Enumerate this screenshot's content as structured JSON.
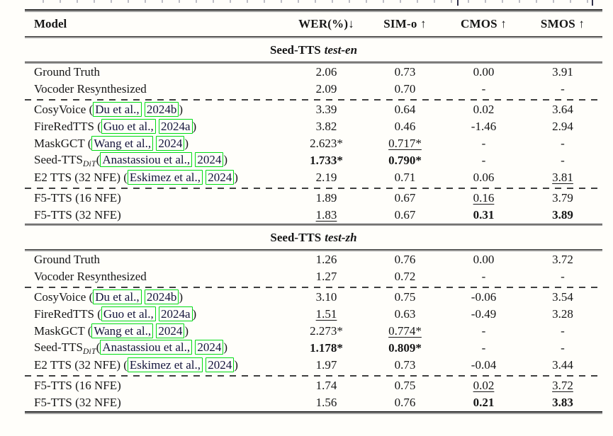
{
  "colors": {
    "citation_box": "#00dc12",
    "rule": "#2c2c2c",
    "text": "#161616",
    "background": "#fffefa"
  },
  "table": {
    "columns": [
      "Model",
      "WER(%)↓",
      "SIM-o ↑",
      "CMOS ↑",
      "SMOS ↑"
    ],
    "sections": [
      {
        "title": {
          "name": "Seed-TTS",
          "variant": "test-en"
        },
        "groups": [
          {
            "rows": [
              {
                "model": [
                  {
                    "t": "Ground Truth"
                  }
                ],
                "values": [
                  {
                    "t": "2.06"
                  },
                  {
                    "t": "0.73"
                  },
                  {
                    "t": "0.00"
                  },
                  {
                    "t": "3.91"
                  }
                ]
              },
              {
                "model": [
                  {
                    "t": "Vocoder Resynthesized"
                  }
                ],
                "values": [
                  {
                    "t": "2.09"
                  },
                  {
                    "t": "0.70"
                  },
                  {
                    "t": "-"
                  },
                  {
                    "t": "-"
                  }
                ]
              }
            ]
          },
          {
            "rows": [
              {
                "model": [
                  {
                    "t": "CosyVoice ("
                  },
                  {
                    "t": "Du et al.,",
                    "box": true
                  },
                  {
                    "t": " "
                  },
                  {
                    "t": "2024b",
                    "box": true
                  },
                  {
                    "t": ")"
                  }
                ],
                "values": [
                  {
                    "t": "3.39"
                  },
                  {
                    "t": "0.64"
                  },
                  {
                    "t": "0.02"
                  },
                  {
                    "t": "3.64"
                  }
                ]
              },
              {
                "model": [
                  {
                    "t": "FireRedTTS ("
                  },
                  {
                    "t": "Guo et al.,",
                    "box": true
                  },
                  {
                    "t": " "
                  },
                  {
                    "t": "2024a",
                    "box": true
                  },
                  {
                    "t": ")"
                  }
                ],
                "values": [
                  {
                    "t": "3.82"
                  },
                  {
                    "t": "0.46"
                  },
                  {
                    "t": "-1.46"
                  },
                  {
                    "t": "2.94"
                  }
                ]
              },
              {
                "model": [
                  {
                    "t": "MaskGCT ("
                  },
                  {
                    "t": "Wang et al.,",
                    "box": true
                  },
                  {
                    "t": " "
                  },
                  {
                    "t": "2024",
                    "box": true
                  },
                  {
                    "t": ")"
                  }
                ],
                "values": [
                  {
                    "t": "2.623*"
                  },
                  {
                    "t": "0.717*",
                    "s": "u"
                  },
                  {
                    "t": "-"
                  },
                  {
                    "t": "-"
                  }
                ]
              },
              {
                "model": [
                  {
                    "t": "Seed-TTS"
                  },
                  {
                    "t": "DiT",
                    "sub": true
                  },
                  {
                    "t": "("
                  },
                  {
                    "t": "Anastassiou et al.,",
                    "box": true
                  },
                  {
                    "t": " "
                  },
                  {
                    "t": "2024",
                    "box": true
                  },
                  {
                    "t": ")"
                  }
                ],
                "values": [
                  {
                    "t": "1.733*",
                    "s": "b"
                  },
                  {
                    "t": "0.790*",
                    "s": "b"
                  },
                  {
                    "t": "-"
                  },
                  {
                    "t": "-"
                  }
                ]
              },
              {
                "model": [
                  {
                    "t": "E2 TTS (32 NFE) ("
                  },
                  {
                    "t": "Eskimez et al.,",
                    "box": true
                  },
                  {
                    "t": " "
                  },
                  {
                    "t": "2024",
                    "box": true
                  },
                  {
                    "t": ")"
                  }
                ],
                "values": [
                  {
                    "t": "2.19"
                  },
                  {
                    "t": "0.71"
                  },
                  {
                    "t": "0.06"
                  },
                  {
                    "t": "3.81",
                    "s": "u"
                  }
                ]
              }
            ]
          },
          {
            "rows": [
              {
                "model": [
                  {
                    "t": "F5-TTS (16 NFE)"
                  }
                ],
                "values": [
                  {
                    "t": "1.89"
                  },
                  {
                    "t": "0.67"
                  },
                  {
                    "t": "0.16",
                    "s": "u"
                  },
                  {
                    "t": "3.79"
                  }
                ]
              },
              {
                "model": [
                  {
                    "t": "F5-TTS (32 NFE)"
                  }
                ],
                "values": [
                  {
                    "t": "1.83",
                    "s": "u"
                  },
                  {
                    "t": "0.67"
                  },
                  {
                    "t": "0.31",
                    "s": "b"
                  },
                  {
                    "t": "3.89",
                    "s": "b"
                  }
                ]
              }
            ]
          }
        ]
      },
      {
        "title": {
          "name": "Seed-TTS",
          "variant": "test-zh"
        },
        "groups": [
          {
            "rows": [
              {
                "model": [
                  {
                    "t": "Ground Truth"
                  }
                ],
                "values": [
                  {
                    "t": "1.26"
                  },
                  {
                    "t": "0.76"
                  },
                  {
                    "t": "0.00"
                  },
                  {
                    "t": "3.72"
                  }
                ]
              },
              {
                "model": [
                  {
                    "t": "Vocoder Resynthesized"
                  }
                ],
                "values": [
                  {
                    "t": "1.27"
                  },
                  {
                    "t": "0.72"
                  },
                  {
                    "t": "-"
                  },
                  {
                    "t": "-"
                  }
                ]
              }
            ]
          },
          {
            "rows": [
              {
                "model": [
                  {
                    "t": "CosyVoice ("
                  },
                  {
                    "t": "Du et al.,",
                    "box": true
                  },
                  {
                    "t": " "
                  },
                  {
                    "t": "2024b",
                    "box": true
                  },
                  {
                    "t": ")"
                  }
                ],
                "values": [
                  {
                    "t": "3.10"
                  },
                  {
                    "t": "0.75"
                  },
                  {
                    "t": "-0.06"
                  },
                  {
                    "t": "3.54"
                  }
                ]
              },
              {
                "model": [
                  {
                    "t": "FireRedTTS ("
                  },
                  {
                    "t": "Guo et al.,",
                    "box": true
                  },
                  {
                    "t": " "
                  },
                  {
                    "t": "2024a",
                    "box": true
                  },
                  {
                    "t": ")"
                  }
                ],
                "values": [
                  {
                    "t": "1.51",
                    "s": "u"
                  },
                  {
                    "t": "0.63"
                  },
                  {
                    "t": "-0.49"
                  },
                  {
                    "t": "3.28"
                  }
                ]
              },
              {
                "model": [
                  {
                    "t": "MaskGCT ("
                  },
                  {
                    "t": "Wang et al.,",
                    "box": true
                  },
                  {
                    "t": " "
                  },
                  {
                    "t": "2024",
                    "box": true
                  },
                  {
                    "t": ")"
                  }
                ],
                "values": [
                  {
                    "t": "2.273*"
                  },
                  {
                    "t": "0.774*",
                    "s": "u"
                  },
                  {
                    "t": "-"
                  },
                  {
                    "t": "-"
                  }
                ]
              },
              {
                "model": [
                  {
                    "t": "Seed-TTS"
                  },
                  {
                    "t": "DiT",
                    "sub": true
                  },
                  {
                    "t": "("
                  },
                  {
                    "t": "Anastassiou et al.,",
                    "box": true
                  },
                  {
                    "t": " "
                  },
                  {
                    "t": "2024",
                    "box": true
                  },
                  {
                    "t": ")"
                  }
                ],
                "values": [
                  {
                    "t": "1.178*",
                    "s": "b"
                  },
                  {
                    "t": "0.809*",
                    "s": "b"
                  },
                  {
                    "t": "-"
                  },
                  {
                    "t": "-"
                  }
                ]
              },
              {
                "model": [
                  {
                    "t": "E2 TTS (32 NFE) ("
                  },
                  {
                    "t": "Eskimez et al.,",
                    "box": true
                  },
                  {
                    "t": " "
                  },
                  {
                    "t": "2024",
                    "box": true
                  },
                  {
                    "t": ")"
                  }
                ],
                "values": [
                  {
                    "t": "1.97"
                  },
                  {
                    "t": "0.73"
                  },
                  {
                    "t": "-0.04"
                  },
                  {
                    "t": "3.44"
                  }
                ]
              }
            ]
          },
          {
            "rows": [
              {
                "model": [
                  {
                    "t": "F5-TTS (16 NFE)"
                  }
                ],
                "values": [
                  {
                    "t": "1.74"
                  },
                  {
                    "t": "0.75"
                  },
                  {
                    "t": "0.02",
                    "s": "u"
                  },
                  {
                    "t": "3.72",
                    "s": "u"
                  }
                ]
              },
              {
                "model": [
                  {
                    "t": "F5-TTS (32 NFE)"
                  }
                ],
                "values": [
                  {
                    "t": "1.56"
                  },
                  {
                    "t": "0.76"
                  },
                  {
                    "t": "0.21",
                    "s": "b"
                  },
                  {
                    "t": "3.83",
                    "s": "b"
                  }
                ]
              }
            ]
          }
        ]
      }
    ]
  }
}
